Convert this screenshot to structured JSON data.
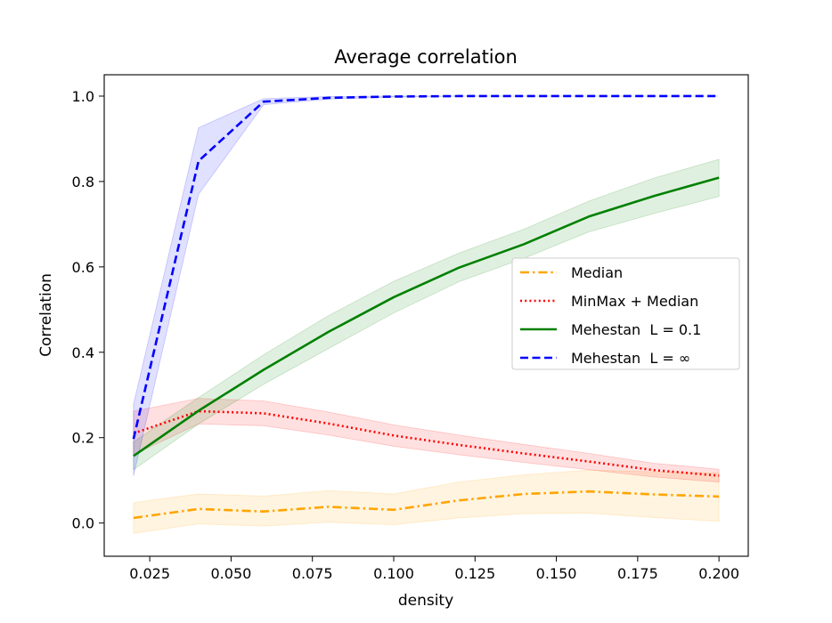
{
  "chart_data": {
    "type": "line",
    "title": "Average correlation",
    "xlabel": "density",
    "ylabel": "Correlation",
    "xlim": [
      0.011,
      0.209
    ],
    "ylim": [
      -0.0778,
      1.05
    ],
    "xticks": [
      0.025,
      0.05,
      0.075,
      0.1,
      0.125,
      0.15,
      0.175,
      0.2
    ],
    "xtick_labels": [
      "0.025",
      "0.050",
      "0.075",
      "0.100",
      "0.125",
      "0.150",
      "0.175",
      "0.200"
    ],
    "yticks": [
      0.0,
      0.2,
      0.4,
      0.6,
      0.8,
      1.0
    ],
    "ytick_labels": [
      "0.0",
      "0.2",
      "0.4",
      "0.6",
      "0.8",
      "1.0"
    ],
    "grid": false,
    "legend_position": "center-right",
    "x": [
      0.02,
      0.04,
      0.06,
      0.08,
      0.1,
      0.12,
      0.14,
      0.16,
      0.18,
      0.2
    ],
    "series": [
      {
        "name": "Median",
        "color": "#FFA500",
        "dash": "dash-dot",
        "values": [
          0.012,
          0.033,
          0.027,
          0.038,
          0.031,
          0.053,
          0.068,
          0.074,
          0.067,
          0.062
        ],
        "band_lower": [
          -0.024,
          -0.002,
          -0.007,
          0.002,
          -0.004,
          0.012,
          0.022,
          0.023,
          0.013,
          0.004
        ],
        "band_upper": [
          0.048,
          0.068,
          0.063,
          0.076,
          0.068,
          0.096,
          0.113,
          0.124,
          0.12,
          0.117
        ]
      },
      {
        "name": "MinMax + Median",
        "color": "#FF0000",
        "dash": "dotted",
        "values": [
          0.21,
          0.262,
          0.257,
          0.233,
          0.205,
          0.183,
          0.163,
          0.144,
          0.124,
          0.111
        ],
        "band_lower": [
          0.16,
          0.232,
          0.228,
          0.206,
          0.18,
          0.16,
          0.142,
          0.125,
          0.108,
          0.096
        ],
        "band_upper": [
          0.262,
          0.292,
          0.286,
          0.26,
          0.23,
          0.206,
          0.184,
          0.163,
          0.14,
          0.126
        ]
      },
      {
        "name": "Mehestan  L = 0.1",
        "color": "#008000",
        "dash": "solid",
        "values": [
          0.157,
          0.263,
          0.359,
          0.448,
          0.529,
          0.598,
          0.653,
          0.718,
          0.766,
          0.809
        ],
        "band_lower": [
          0.125,
          0.232,
          0.325,
          0.409,
          0.492,
          0.565,
          0.62,
          0.682,
          0.725,
          0.765
        ],
        "band_upper": [
          0.19,
          0.294,
          0.394,
          0.486,
          0.566,
          0.632,
          0.688,
          0.754,
          0.808,
          0.852
        ]
      },
      {
        "name": "Mehestan  L = ∞",
        "color": "#0000FF",
        "dash": "dashed",
        "values": [
          0.197,
          0.848,
          0.987,
          0.996,
          0.999,
          1.0,
          1.0,
          1.0,
          1.0,
          1.0
        ],
        "band_lower": [
          0.11,
          0.77,
          0.98,
          0.993,
          0.998,
          1.0,
          1.0,
          1.0,
          1.0,
          1.0
        ],
        "band_upper": [
          0.278,
          0.926,
          0.994,
          0.999,
          1.0,
          1.0,
          1.0,
          1.0,
          1.0,
          1.0
        ]
      }
    ]
  }
}
